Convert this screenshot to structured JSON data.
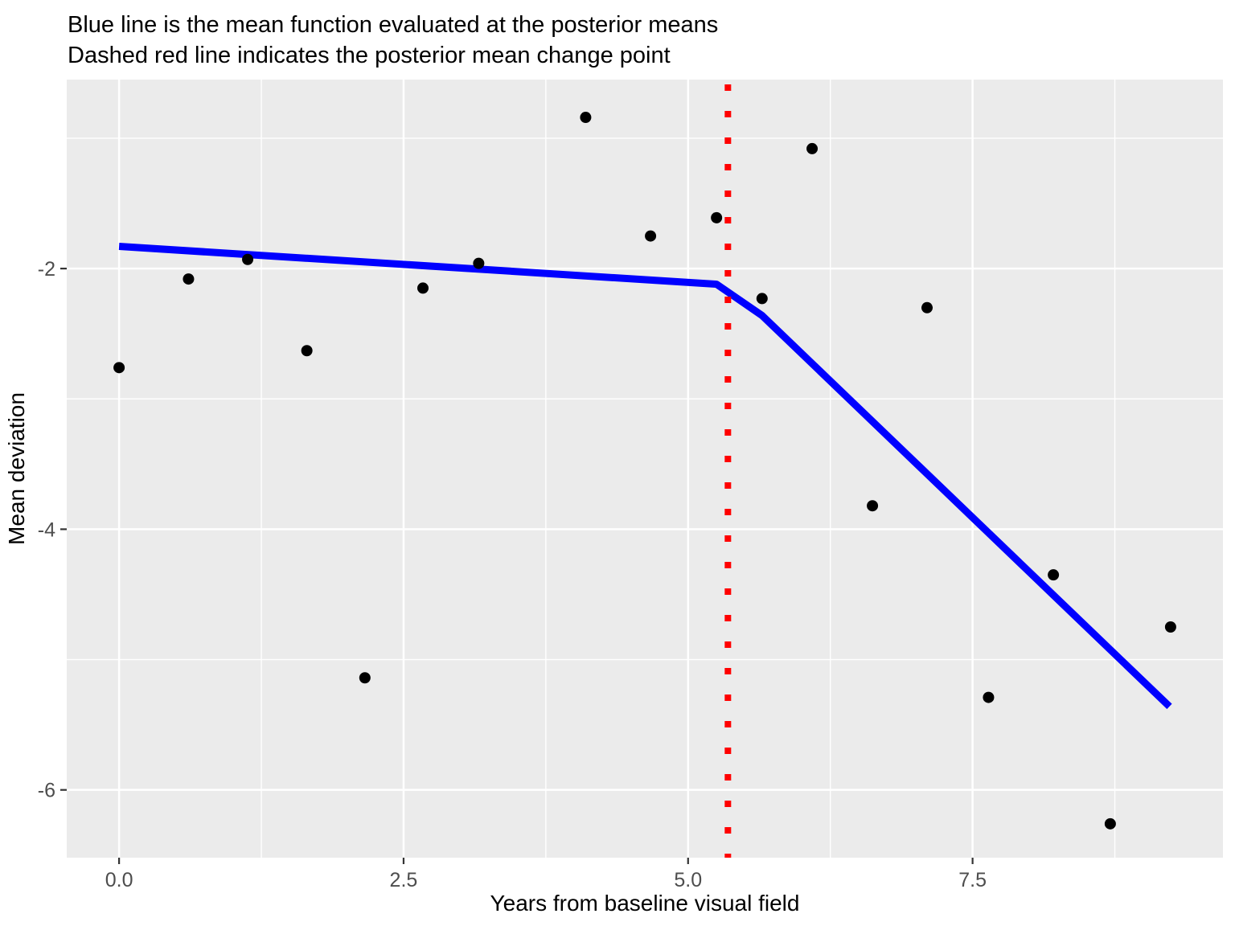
{
  "title": {
    "line1": "Blue line is the mean function evaluated at the posterior means",
    "line2": "Dashed red line indicates the posterior mean change point"
  },
  "chart_data": {
    "type": "scatter",
    "title": "Blue line is the mean function evaluated at the posterior means\nDashed red line indicates the posterior mean change point",
    "xlabel": "Years from baseline visual field",
    "ylabel": "Mean deviation",
    "xlim": [
      -0.46,
      9.7
    ],
    "ylim": [
      -6.52,
      -0.55
    ],
    "grid": "on",
    "x_major_ticks": {
      "values": [
        0,
        2.5,
        5,
        7.5
      ],
      "labels": [
        "0.0",
        "2.5",
        "5.0",
        "7.5"
      ]
    },
    "y_major_ticks": {
      "values": [
        -2,
        -4,
        -6
      ],
      "labels": [
        "-2",
        "-4",
        "-6"
      ]
    },
    "x_minor_ticks": [
      1.25,
      3.75,
      6.25,
      8.75
    ],
    "y_minor_ticks": [
      -1,
      -3,
      -5
    ],
    "points": [
      [
        0.0,
        -2.76
      ],
      [
        0.61,
        -2.08
      ],
      [
        1.13,
        -1.93
      ],
      [
        1.65,
        -2.63
      ],
      [
        2.16,
        -5.14
      ],
      [
        2.67,
        -2.15
      ],
      [
        3.16,
        -1.96
      ],
      [
        4.1,
        -0.84
      ],
      [
        4.67,
        -1.75
      ],
      [
        5.25,
        -1.61
      ],
      [
        5.65,
        -2.23
      ],
      [
        6.09,
        -1.08
      ],
      [
        6.62,
        -3.82
      ],
      [
        7.1,
        -2.3
      ],
      [
        7.64,
        -5.29
      ],
      [
        8.21,
        -4.35
      ],
      [
        8.71,
        -6.26
      ],
      [
        9.24,
        -4.75
      ]
    ],
    "mean_line": {
      "name": "posterior mean function",
      "vertices": [
        [
          0,
          -1.83
        ],
        [
          5.25,
          -2.12
        ],
        [
          5.65,
          -2.36
        ],
        [
          9.23,
          -5.36
        ]
      ]
    },
    "change_point": {
      "name": "posterior mean change point",
      "x": 5.35
    },
    "colors": {
      "mean_line": "#0000FF",
      "change_point_line": "#FF0000",
      "point": "#000000",
      "panel_bg": "#EBEBEB",
      "grid": "#FFFFFF",
      "tick_label": "#4D4D4D",
      "tick_mark": "#333333",
      "text": "#000000"
    }
  }
}
